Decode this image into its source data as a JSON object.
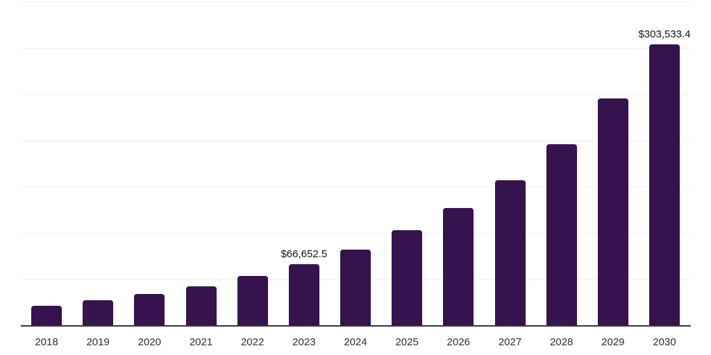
{
  "chart_data": {
    "type": "bar",
    "title": "",
    "xlabel": "",
    "ylabel": "",
    "categories": [
      "2018",
      "2019",
      "2020",
      "2021",
      "2022",
      "2023",
      "2024",
      "2025",
      "2026",
      "2027",
      "2028",
      "2029",
      "2030"
    ],
    "values": [
      21600,
      27600,
      34700,
      42500,
      53700,
      66652.5,
      82000,
      102900,
      126800,
      157400,
      196100,
      245400,
      303533.4
    ],
    "bar_labels": [
      "",
      "",
      "",
      "",
      "",
      "$66,652.5",
      "",
      "",
      "",
      "",
      "",
      "",
      "$303,533.4"
    ],
    "ylim": [
      0,
      350000
    ],
    "gridline_step": 50000,
    "grid": true,
    "legend": false,
    "colors": {
      "bar": "#36124f",
      "gridline": "#efeff1",
      "axis_line": "#37343f",
      "tick_label": "#2e2e2e",
      "data_label": "#101010",
      "background": "#ffffff"
    }
  }
}
